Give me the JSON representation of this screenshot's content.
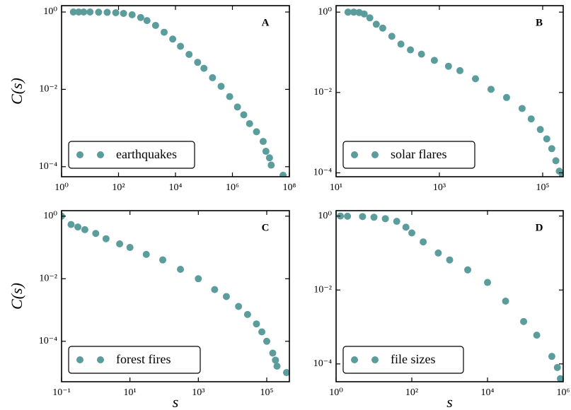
{
  "chart_data": [
    {
      "type": "scatter",
      "annotation": "A",
      "ylabel": "C(s)",
      "xscale": "log",
      "yscale": "log",
      "legend": "lower left",
      "xlim": [
        1,
        100000000
      ],
      "ylim": [
        5.5e-05,
        1.46
      ],
      "xticks": [
        {
          "value": 1,
          "label": "10⁰"
        },
        {
          "value": 100,
          "label": "10²"
        },
        {
          "value": 10000,
          "label": "10⁴"
        },
        {
          "value": 1000000,
          "label": "10⁶"
        },
        {
          "value": 100000000,
          "label": "10⁸"
        }
      ],
      "yticks": [
        {
          "value": 1,
          "label": "10⁰"
        },
        {
          "value": 0.01,
          "label": "10⁻²"
        },
        {
          "value": 0.0001,
          "label": "10⁻⁴"
        }
      ],
      "series": [
        {
          "name": "earthquakes",
          "color": "#5b9c9c",
          "x": [
            2.6,
            4,
            6,
            10,
            20,
            40,
            80,
            150,
            300,
            600,
            1000,
            2000,
            4000,
            8000,
            15000,
            30000,
            60000,
            100000,
            200000,
            400000,
            800000,
            1500000,
            2500000,
            4000000,
            7000000,
            12000000,
            15000000,
            20000000,
            23000000,
            60000000
          ],
          "values": [
            1,
            1,
            1,
            1,
            0.99,
            0.98,
            0.96,
            0.92,
            0.85,
            0.72,
            0.6,
            0.45,
            0.3,
            0.2,
            0.13,
            0.08,
            0.05,
            0.035,
            0.02,
            0.012,
            0.0065,
            0.0035,
            0.0022,
            0.0013,
            0.0008,
            0.00045,
            0.00025,
            0.00017,
            0.00011,
            6e-05
          ]
        }
      ]
    },
    {
      "type": "scatter",
      "annotation": "B",
      "xscale": "log",
      "yscale": "log",
      "legend": "lower left",
      "xlim": [
        10,
        250000
      ],
      "ylim": [
        8e-05,
        1.45
      ],
      "xticks": [
        {
          "value": 10,
          "label": "10¹"
        },
        {
          "value": 1000,
          "label": "10³"
        },
        {
          "value": 100000,
          "label": "10⁵"
        }
      ],
      "yticks": [
        {
          "value": 1,
          "label": "10⁰"
        },
        {
          "value": 0.01,
          "label": "10⁻²"
        },
        {
          "value": 0.0001,
          "label": "10⁻⁴"
        }
      ],
      "series": [
        {
          "name": "solar flares",
          "color": "#5b9c9c",
          "x": [
            17,
            22,
            28,
            35,
            45,
            60,
            80,
            120,
            180,
            275,
            450,
            800,
            1500,
            2500,
            5000,
            10000,
            20000,
            40000,
            60000,
            90000,
            120000,
            150000,
            180000,
            210000,
            240000
          ],
          "values": [
            1,
            1,
            0.98,
            0.9,
            0.72,
            0.5,
            0.4,
            0.25,
            0.16,
            0.115,
            0.09,
            0.063,
            0.045,
            0.035,
            0.022,
            0.012,
            0.0075,
            0.004,
            0.0022,
            0.0012,
            0.0007,
            0.0004,
            0.0002,
            0.00011,
            9e-05
          ]
        }
      ]
    },
    {
      "type": "scatter",
      "annotation": "C",
      "xlabel": "s",
      "ylabel": "C(s)",
      "xscale": "log",
      "yscale": "log",
      "legend": "lower left",
      "xlim": [
        0.1,
        460000
      ],
      "ylim": [
        5.1e-06,
        1.5
      ],
      "xticks": [
        {
          "value": 0.1,
          "label": "10⁻¹"
        },
        {
          "value": 10,
          "label": "10¹"
        },
        {
          "value": 1000,
          "label": "10³"
        },
        {
          "value": 100000,
          "label": "10⁵"
        }
      ],
      "yticks": [
        {
          "value": 1,
          "label": "10⁰"
        },
        {
          "value": 0.01,
          "label": "10⁻²"
        },
        {
          "value": 0.0001,
          "label": "10⁻⁴"
        }
      ],
      "series": [
        {
          "name": "forest fires",
          "color": "#5b9c9c",
          "x": [
            0.1,
            0.19,
            0.3,
            0.48,
            1,
            2,
            5,
            10,
            30,
            91,
            300,
            1000,
            3000,
            6600,
            15000,
            27500,
            50000,
            72000,
            100000,
            150000,
            180000,
            200000,
            380000
          ],
          "values": [
            1,
            0.54,
            0.45,
            0.37,
            0.28,
            0.19,
            0.13,
            0.1,
            0.06,
            0.04,
            0.02,
            0.01,
            0.0045,
            0.0027,
            0.0013,
            0.00072,
            0.00036,
            0.0002,
            0.0001,
            4.2e-05,
            2.5e-05,
            1.6e-05,
            1e-05
          ]
        }
      ]
    },
    {
      "type": "scatter",
      "annotation": "D",
      "xlabel": "s",
      "xscale": "log",
      "yscale": "log",
      "legend": "lower left",
      "xlim": [
        1,
        1000000
      ],
      "ylim": [
        3.3e-05,
        1.4
      ],
      "xticks": [
        {
          "value": 1,
          "label": "10⁰"
        },
        {
          "value": 100,
          "label": "10²"
        },
        {
          "value": 10000,
          "label": "10⁴"
        },
        {
          "value": 1000000,
          "label": "10⁶"
        }
      ],
      "yticks": [
        {
          "value": 1,
          "label": "10⁰"
        },
        {
          "value": 0.01,
          "label": "10⁻²"
        },
        {
          "value": 0.0001,
          "label": "10⁻⁴"
        }
      ],
      "series": [
        {
          "name": "file sizes",
          "color": "#5b9c9c",
          "x": [
            1.3,
            2,
            5,
            10,
            20,
            40,
            70,
            100,
            200,
            500,
            1000,
            3000,
            10000,
            30000,
            90000,
            200000,
            500000,
            700000,
            840000
          ],
          "values": [
            1,
            0.99,
            0.97,
            0.93,
            0.85,
            0.72,
            0.5,
            0.35,
            0.2,
            0.1,
            0.065,
            0.035,
            0.016,
            0.005,
            0.0014,
            0.0006,
            0.00016,
            8e-05,
            4e-05
          ]
        }
      ]
    }
  ]
}
